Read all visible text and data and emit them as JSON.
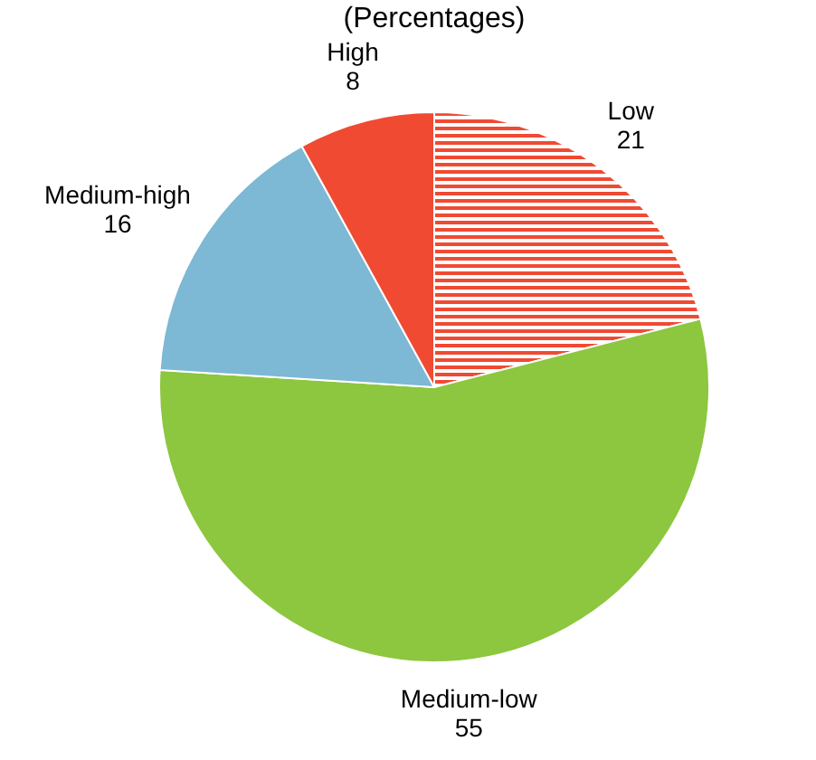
{
  "chart_data": {
    "type": "pie",
    "title": "(Percentages)",
    "categories": [
      "Low",
      "Medium-low",
      "Medium-high",
      "High"
    ],
    "values": [
      21,
      55,
      16,
      8
    ],
    "colors": [
      "#f04a33",
      "#8dc63f",
      "#7db8d4",
      "#f04a33"
    ],
    "data_labels": true
  }
}
